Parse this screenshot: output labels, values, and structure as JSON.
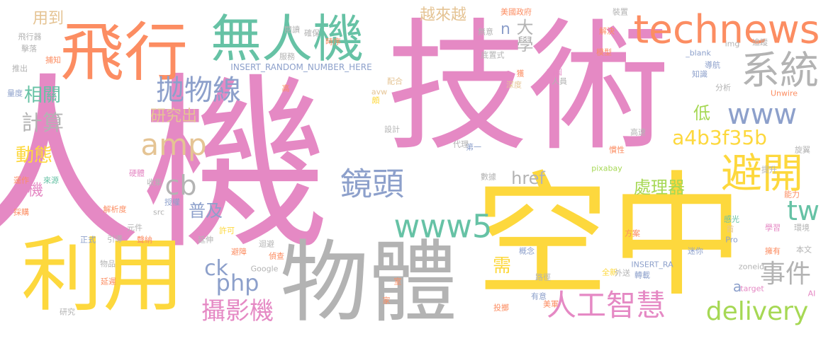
{
  "colors": {
    "pink": "#e589c4",
    "yellow": "#fdd83d",
    "gray": "#b3b3b3",
    "orange": "#fc8d62",
    "green": "#66c2a5",
    "blue": "#8da0cb",
    "tan": "#e5c494",
    "lime": "#a6d854"
  },
  "words": [
    {
      "t": "人機",
      "c": "pink"
    },
    {
      "t": "技術",
      "c": "pink"
    },
    {
      "t": "空中",
      "c": "yellow"
    },
    {
      "t": "物體",
      "c": "gray"
    },
    {
      "t": "利用",
      "c": "yellow"
    },
    {
      "t": "飛行",
      "c": "orange"
    },
    {
      "t": "無人機",
      "c": "green"
    },
    {
      "t": "technews",
      "c": "orange"
    },
    {
      "t": "系統",
      "c": "gray"
    },
    {
      "t": "www",
      "c": "blue"
    },
    {
      "t": "避開",
      "c": "yellow"
    },
    {
      "t": "拋物線",
      "c": "blue"
    },
    {
      "t": "amp",
      "c": "tan"
    },
    {
      "t": "cb",
      "c": "gray"
    },
    {
      "t": "鏡頭",
      "c": "blue"
    },
    {
      "t": "www5",
      "c": "green"
    },
    {
      "t": "tw",
      "c": "green"
    },
    {
      "t": "delivery",
      "c": "lime"
    },
    {
      "t": "事件",
      "c": "gray"
    },
    {
      "t": "人工智慧",
      "c": "pink"
    },
    {
      "t": "攝影機",
      "c": "pink"
    },
    {
      "t": "php",
      "c": "blue"
    },
    {
      "t": "ck",
      "c": "blue"
    },
    {
      "t": "普及",
      "c": "blue"
    },
    {
      "t": "處理器",
      "c": "lime"
    },
    {
      "t": "a4b3f35b",
      "c": "yellow"
    },
    {
      "t": "href",
      "c": "gray"
    },
    {
      "t": "大學",
      "c": "gray"
    },
    {
      "t": "越來越",
      "c": "tan"
    },
    {
      "t": "n",
      "c": "blue"
    },
    {
      "t": "低",
      "c": "lime"
    },
    {
      "t": "需",
      "c": "yellow"
    },
    {
      "t": "a",
      "c": "blue"
    },
    {
      "t": "計算",
      "c": "gray"
    },
    {
      "t": "相關",
      "c": "green"
    },
    {
      "t": "動態",
      "c": "yellow"
    },
    {
      "t": "研究出",
      "c": "tan"
    },
    {
      "t": "用到",
      "c": "tan"
    },
    {
      "t": "機",
      "c": "pink"
    },
    {
      "t": "INSERT_RANDOM_NUMBER_HERE",
      "c": "blue"
    },
    {
      "t": "美國政府",
      "c": "orange"
    },
    {
      "t": "裝置",
      "c": "gray"
    },
    {
      "t": "解決",
      "c": "orange"
    },
    {
      "t": "模型",
      "c": "orange"
    },
    {
      "t": "_blank",
      "c": "blue"
    },
    {
      "t": "img",
      "c": "gray"
    },
    {
      "t": "追蹤",
      "c": "gray"
    },
    {
      "t": "導航",
      "c": "blue"
    },
    {
      "t": "知識",
      "c": "blue"
    },
    {
      "t": "分析",
      "c": "gray"
    },
    {
      "t": "Unwire",
      "c": "orange"
    },
    {
      "t": "旋翼",
      "c": "gray"
    },
    {
      "t": "能力",
      "c": "orange"
    },
    {
      "t": "提升",
      "c": "gray"
    },
    {
      "t": "感光",
      "c": "green"
    },
    {
      "t": "首",
      "c": "tan"
    },
    {
      "t": "Pro",
      "c": "blue"
    },
    {
      "t": "學習",
      "c": "pink"
    },
    {
      "t": "環境",
      "c": "gray"
    },
    {
      "t": "本文",
      "c": "gray"
    },
    {
      "t": "擁有",
      "c": "orange"
    },
    {
      "t": "方案",
      "c": "orange"
    },
    {
      "t": "迷你",
      "c": "blue"
    },
    {
      "t": "INSERT_RA",
      "c": "blue"
    },
    {
      "t": "zoneid",
      "c": "gray"
    },
    {
      "t": "target",
      "c": "pink"
    },
    {
      "t": "AI",
      "c": "pink"
    },
    {
      "t": "全新",
      "c": "yellow"
    },
    {
      "t": "外送",
      "c": "gray"
    },
    {
      "t": "轉載",
      "c": "blue"
    },
    {
      "t": "有意",
      "c": "blue"
    },
    {
      "t": "美軍",
      "c": "orange"
    },
    {
      "t": "投擲",
      "c": "orange"
    },
    {
      "t": "路徑",
      "c": "gray"
    },
    {
      "t": "概念",
      "c": "blue"
    },
    {
      "t": "室",
      "c": "orange"
    },
    {
      "t": "家",
      "c": "orange"
    },
    {
      "t": "pixabay",
      "c": "lime"
    },
    {
      "t": "慣性",
      "c": "orange"
    },
    {
      "t": "高速",
      "c": "gray"
    },
    {
      "t": "人員",
      "c": "gray"
    },
    {
      "t": "首圖",
      "c": "pink"
    },
    {
      "t": "獲",
      "c": "orange"
    },
    {
      "t": "深度",
      "c": "tan"
    },
    {
      "t": "底置式",
      "c": "gray"
    },
    {
      "t": "無意",
      "c": "gray"
    },
    {
      "t": "第一",
      "c": "blue"
    },
    {
      "t": "數據",
      "c": "gray"
    },
    {
      "t": "代理",
      "c": "gray"
    },
    {
      "t": "設計",
      "c": "gray"
    },
    {
      "t": "頗",
      "c": "yellow"
    },
    {
      "t": "配合",
      "c": "tan"
    },
    {
      "t": "avw",
      "c": "tan"
    },
    {
      "t": "時序",
      "c": "orange"
    },
    {
      "t": "確保",
      "c": "gray"
    },
    {
      "t": "閱讀",
      "c": "gray"
    },
    {
      "t": "服務",
      "c": "gray"
    },
    {
      "t": "高",
      "c": "orange"
    },
    {
      "t": "飛行器",
      "c": "gray"
    },
    {
      "t": "擊落",
      "c": "gray"
    },
    {
      "t": "捕知",
      "c": "orange"
    },
    {
      "t": "推出",
      "c": "gray"
    },
    {
      "t": "量度",
      "c": "blue"
    },
    {
      "t": "硬體",
      "c": "pink"
    },
    {
      "t": "運作",
      "c": "orange"
    },
    {
      "t": "來源",
      "c": "green"
    },
    {
      "t": "收集",
      "c": "gray"
    },
    {
      "t": "授權",
      "c": "blue"
    },
    {
      "t": "src",
      "c": "gray"
    },
    {
      "t": "採購",
      "c": "orange"
    },
    {
      "t": "解析度",
      "c": "orange"
    },
    {
      "t": "元件",
      "c": "gray"
    },
    {
      "t": "正式",
      "c": "blue"
    },
    {
      "t": "引導",
      "c": "gray"
    },
    {
      "t": "聲納",
      "c": "orange"
    },
    {
      "t": "許可",
      "c": "yellow"
    },
    {
      "t": "延伸",
      "c": "gray"
    },
    {
      "t": "迴避",
      "c": "gray"
    },
    {
      "t": "偵查",
      "c": "orange"
    },
    {
      "t": "避障",
      "c": "orange"
    },
    {
      "t": "物品",
      "c": "gray"
    },
    {
      "t": "Google",
      "c": "gray"
    },
    {
      "t": "延遲",
      "c": "orange"
    },
    {
      "t": "研究",
      "c": "gray"
    }
  ]
}
